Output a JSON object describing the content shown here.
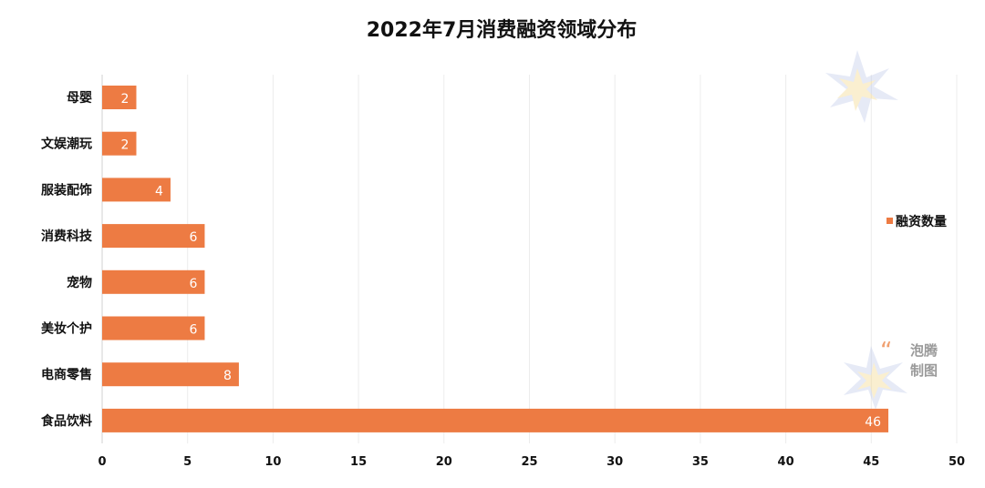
{
  "chart_data": {
    "type": "bar",
    "orientation": "horizontal",
    "title": "2022年7月消费融资领域分布",
    "categories": [
      "母婴",
      "文娱潮玩",
      "服装配饰",
      "消费科技",
      "宠物",
      "美妆个护",
      "电商零售",
      "食品饮料"
    ],
    "series": [
      {
        "name": "融资数量",
        "values": [
          2,
          2,
          4,
          6,
          6,
          6,
          8,
          46
        ]
      }
    ],
    "xlim": [
      0,
      50
    ],
    "xticks": [
      0,
      5,
      10,
      15,
      20,
      25,
      30,
      35,
      40,
      45,
      50
    ],
    "grid": true,
    "legend_position": "right",
    "data_labels": true,
    "bar_color": "#ED7B43"
  },
  "watermark": {
    "line1": "泡腾",
    "line2": "制图"
  }
}
